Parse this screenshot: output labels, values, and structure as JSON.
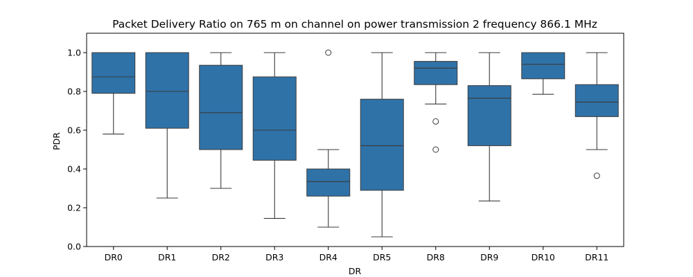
{
  "chart_data": {
    "type": "box",
    "title": "Packet Delivery Ratio on 765 m on channel on power transmission 2 frequency 866.1 MHz",
    "xlabel": "DR",
    "ylabel": "PDR",
    "ylim": [
      0.0,
      1.1
    ],
    "yticks": [
      0.0,
      0.2,
      0.4,
      0.6,
      0.8,
      1.0
    ],
    "ytick_labels": [
      "0.0",
      "0.2",
      "0.4",
      "0.6",
      "0.8",
      "1.0"
    ],
    "categories": [
      "DR0",
      "DR1",
      "DR2",
      "DR3",
      "DR4",
      "DR5",
      "DR8",
      "DR9",
      "DR10",
      "DR11"
    ],
    "series": [
      {
        "category": "DR0",
        "whisker_low": 0.58,
        "q1": 0.79,
        "median": 0.875,
        "q3": 1.0,
        "whisker_high": 1.0,
        "outliers": []
      },
      {
        "category": "DR1",
        "whisker_low": 0.25,
        "q1": 0.61,
        "median": 0.8,
        "q3": 1.0,
        "whisker_high": 1.0,
        "outliers": []
      },
      {
        "category": "DR2",
        "whisker_low": 0.3,
        "q1": 0.5,
        "median": 0.69,
        "q3": 0.935,
        "whisker_high": 1.0,
        "outliers": []
      },
      {
        "category": "DR3",
        "whisker_low": 0.145,
        "q1": 0.445,
        "median": 0.6,
        "q3": 0.875,
        "whisker_high": 1.0,
        "outliers": []
      },
      {
        "category": "DR4",
        "whisker_low": 0.1,
        "q1": 0.26,
        "median": 0.335,
        "q3": 0.4,
        "whisker_high": 0.5,
        "outliers": [
          1.0
        ]
      },
      {
        "category": "DR5",
        "whisker_low": 0.05,
        "q1": 0.29,
        "median": 0.52,
        "q3": 0.76,
        "whisker_high": 1.0,
        "outliers": []
      },
      {
        "category": "DR8",
        "whisker_low": 0.735,
        "q1": 0.835,
        "median": 0.92,
        "q3": 0.955,
        "whisker_high": 1.0,
        "outliers": [
          0.645,
          0.5
        ]
      },
      {
        "category": "DR9",
        "whisker_low": 0.235,
        "q1": 0.52,
        "median": 0.765,
        "q3": 0.83,
        "whisker_high": 1.0,
        "outliers": []
      },
      {
        "category": "DR10",
        "whisker_low": 0.785,
        "q1": 0.865,
        "median": 0.94,
        "q3": 1.0,
        "whisker_high": 1.0,
        "outliers": []
      },
      {
        "category": "DR11",
        "whisker_low": 0.5,
        "q1": 0.67,
        "median": 0.745,
        "q3": 0.835,
        "whisker_high": 1.0,
        "outliers": [
          0.365
        ]
      }
    ],
    "box_color": "#2f72a8",
    "line_color": "#3a3a3a",
    "grid": false,
    "legend": "none"
  }
}
